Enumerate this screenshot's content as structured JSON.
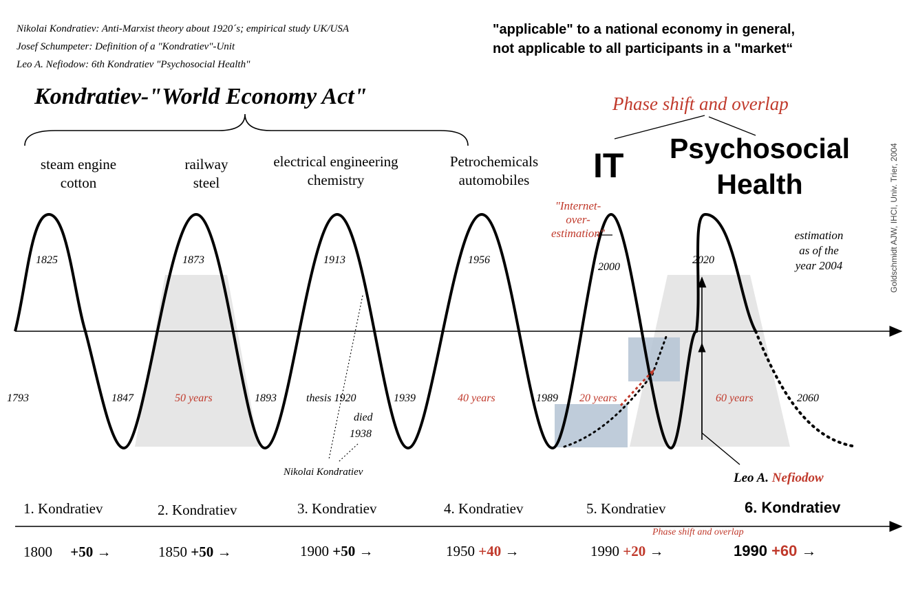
{
  "notes": [
    "Nikolai Kondratiev: Anti-Marxist theory about 1920´s; empirical study UK/USA",
    "Josef Schumpeter: Definition of a \"Kondratiev\"-Unit",
    "Leo A. Nefiodow: 6th Kondratiev \"Psychosocial Health\""
  ],
  "scope": {
    "line1": "\"applicable\" to a national economy in general,",
    "line2": "not applicable to all participants in a \"market“"
  },
  "title": "Kondratiev-\"World Economy Act\"",
  "phase_shift_label": "Phase shift and overlap",
  "credit": "Goldschmidt AJW, IHCI, Univ. Trier, 2004",
  "waves": [
    {
      "tech1": "steam engine",
      "tech2": "cotton",
      "peak_year": "1825",
      "trough_year": "1793",
      "label": "1. Kondratiev",
      "start": "1800",
      "inc": "+50",
      "arrow": "→"
    },
    {
      "tech1": "railway",
      "tech2": "steel",
      "peak_year": "1873",
      "trough_year": "1847",
      "label": "2. Kondratiev",
      "start": "1850",
      "inc": "+50",
      "arrow": "→"
    },
    {
      "tech1": "electrical engineering",
      "tech2": "chemistry",
      "peak_year": "1913",
      "trough_year": "1893",
      "label": "3. Kondratiev",
      "start": "1900",
      "inc": "+50",
      "arrow": "→"
    },
    {
      "tech1": "Petrochemicals",
      "tech2": "automobiles",
      "peak_year": "1956",
      "trough_year": "1939",
      "label": "4. Kondratiev",
      "start": "1950",
      "inc": "+40",
      "arrow": "→"
    },
    {
      "tech1": "IT",
      "tech2": "",
      "peak_year": "2000",
      "trough_year": "1989",
      "label": "5. Kondratiev",
      "start": "1990",
      "inc": "+20",
      "arrow": "→"
    },
    {
      "tech1": "Psychosocial",
      "tech2": "Health",
      "peak_year": "2020",
      "trough_year": "2060",
      "label": "6. Kondratiev",
      "start": "1990",
      "inc": "+60",
      "arrow": "→"
    }
  ],
  "durations": {
    "d1": "50 years",
    "d2": "40 years",
    "d3": "20 years",
    "d4": "60 years"
  },
  "thesis_label": "thesis 1920",
  "died_label": "died",
  "died_year": "1938",
  "kondratiev_name": "Nikolai Kondratiev",
  "internet_label": {
    "l1": "\"Internet-",
    "l2": "over-",
    "l3": "estimation\""
  },
  "estimation": {
    "l1": "estimation",
    "l2": "as of the",
    "l3": "year 2004"
  },
  "nefiodow": {
    "first": "Leo A.",
    "last": "Nefiodow"
  },
  "phase_shift_small": "Phase shift and overlap",
  "colors": {
    "accent": "#c0392b",
    "shade": "#e6e6e6",
    "blue": "#b4c3d4"
  }
}
